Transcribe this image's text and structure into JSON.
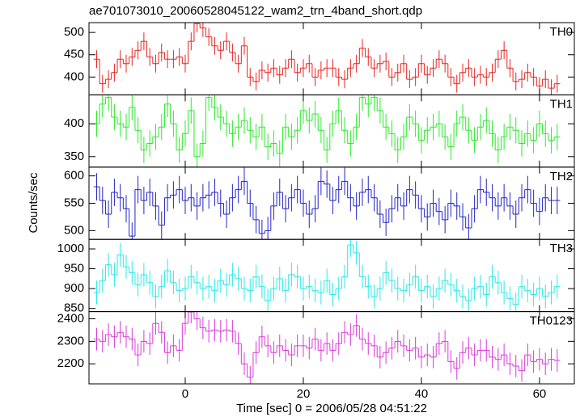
{
  "chart_data": {
    "type": "step",
    "title": "ae701073010_20060528045122_wam2_trn_4band_short.qdp",
    "xlabel": "Time [sec] 0 = 2006/05/28 04:51:22",
    "ylabel": "Counts/sec",
    "xlim": [
      -16.3,
      65.9
    ],
    "xticks": [
      0,
      20,
      40,
      60
    ],
    "x": [
      -15,
      -14,
      -13,
      -12,
      -11,
      -10,
      -9,
      -8,
      -7,
      -6,
      -5,
      -4,
      -3,
      -2,
      -1,
      0,
      1,
      2,
      3,
      4,
      5,
      6,
      7,
      8,
      9,
      10,
      11,
      12,
      13,
      14,
      15,
      16,
      17,
      18,
      19,
      20,
      21,
      22,
      23,
      24,
      25,
      26,
      27,
      28,
      29,
      30,
      31,
      32,
      33,
      34,
      35,
      36,
      37,
      38,
      39,
      40,
      41,
      42,
      43,
      44,
      45,
      46,
      47,
      48,
      49,
      50,
      51,
      52,
      53,
      54,
      55,
      56,
      57,
      58,
      59,
      60,
      61,
      62,
      63
    ],
    "series": [
      {
        "name": "TH0",
        "color": "#e8231f",
        "ylim": [
          360,
          522
        ],
        "yticks": [
          400,
          450,
          500
        ],
        "error": 20,
        "values": [
          440,
          385,
          395,
          410,
          440,
          430,
          445,
          460,
          480,
          445,
          430,
          455,
          440,
          440,
          445,
          430,
          480,
          520,
          510,
          490,
          470,
          460,
          480,
          455,
          430,
          470,
          400,
          390,
          415,
          410,
          420,
          405,
          420,
          440,
          410,
          420,
          430,
          400,
          415,
          420,
          420,
          400,
          395,
          420,
          430,
          465,
          445,
          420,
          430,
          435,
          400,
          410,
          430,
          395,
          400,
          430,
          405,
          420,
          440,
          430,
          400,
          385,
          410,
          420,
          400,
          405,
          400,
          410,
          440,
          460,
          420,
          390,
          395,
          410,
          400,
          380,
          395,
          375,
          385
        ]
      },
      {
        "name": "TH1",
        "color": "#2bea2b",
        "ylim": [
          334,
          444
        ],
        "yticks": [
          350,
          400
        ],
        "error": 20,
        "values": [
          400,
          430,
          440,
          410,
          400,
          395,
          425,
          390,
          360,
          370,
          380,
          395,
          430,
          400,
          360,
          385,
          420,
          350,
          370,
          440,
          425,
          410,
          400,
          385,
          395,
          405,
          390,
          380,
          395,
          365,
          370,
          355,
          395,
          380,
          390,
          420,
          405,
          415,
          390,
          360,
          400,
          420,
          390,
          370,
          395,
          440,
          430,
          440,
          420,
          395,
          385,
          360,
          380,
          410,
          400,
          375,
          390,
          395,
          400,
          380,
          365,
          400,
          410,
          390,
          375,
          395,
          405,
          385,
          360,
          380,
          395,
          390,
          370,
          385,
          375,
          400,
          385,
          375,
          380
        ]
      },
      {
        "name": "TH2",
        "color": "#2424c8",
        "ylim": [
          484,
          616
        ],
        "yticks": [
          500,
          550,
          600
        ],
        "error": 25,
        "values": [
          580,
          555,
          530,
          570,
          560,
          540,
          490,
          575,
          555,
          570,
          545,
          510,
          560,
          565,
          575,
          555,
          560,
          545,
          560,
          565,
          570,
          550,
          530,
          560,
          575,
          590,
          550,
          520,
          495,
          500,
          545,
          570,
          540,
          560,
          575,
          550,
          530,
          540,
          590,
          585,
          555,
          575,
          590,
          560,
          545,
          570,
          575,
          560,
          530,
          515,
          540,
          560,
          545,
          575,
          565,
          540,
          525,
          550,
          535,
          520,
          550,
          545,
          525,
          505,
          540,
          575,
          570,
          560,
          545,
          560,
          545,
          530,
          560,
          575,
          550,
          535,
          560,
          555,
          555
        ]
      },
      {
        "name": "TH3",
        "color": "#2ee8e8",
        "ylim": [
          842,
          1024
        ],
        "yticks": [
          850,
          900,
          950,
          1000
        ],
        "error": 30,
        "values": [
          890,
          920,
          960,
          935,
          985,
          955,
          940,
          910,
          935,
          915,
          880,
          905,
          945,
          915,
          895,
          900,
          930,
          915,
          900,
          905,
          895,
          920,
          910,
          935,
          925,
          900,
          895,
          930,
          905,
          870,
          900,
          925,
          895,
          935,
          930,
          900,
          905,
          895,
          890,
          920,
          885,
          900,
          930,
          1010,
          990,
          930,
          905,
          880,
          900,
          940,
          920,
          900,
          895,
          910,
          930,
          895,
          905,
          880,
          900,
          920,
          910,
          895,
          880,
          870,
          900,
          905,
          885,
          930,
          915,
          890,
          875,
          860,
          905,
          895,
          885,
          900,
          880,
          890,
          905
        ]
      },
      {
        "name": "TH0123",
        "color": "#d93ad9",
        "ylim": [
          2111,
          2432
        ],
        "yticks": [
          2200,
          2300,
          2400
        ],
        "error": 50,
        "values": [
          2310,
          2300,
          2330,
          2320,
          2340,
          2320,
          2310,
          2240,
          2300,
          2290,
          2380,
          2340,
          2250,
          2280,
          2260,
          2380,
          2430,
          2400,
          2360,
          2345,
          2350,
          2345,
          2350,
          2345,
          2290,
          2200,
          2140,
          2250,
          2320,
          2280,
          2250,
          2280,
          2260,
          2240,
          2280,
          2280,
          2270,
          2310,
          2260,
          2290,
          2260,
          2290,
          2340,
          2330,
          2370,
          2310,
          2290,
          2280,
          2230,
          2250,
          2270,
          2300,
          2280,
          2260,
          2270,
          2230,
          2240,
          2230,
          2290,
          2300,
          2210,
          2180,
          2250,
          2270,
          2240,
          2260,
          2260,
          2230,
          2220,
          2240,
          2200,
          2190,
          2170,
          2240,
          2210,
          2220,
          2200,
          2220,
          2215
        ]
      }
    ]
  }
}
